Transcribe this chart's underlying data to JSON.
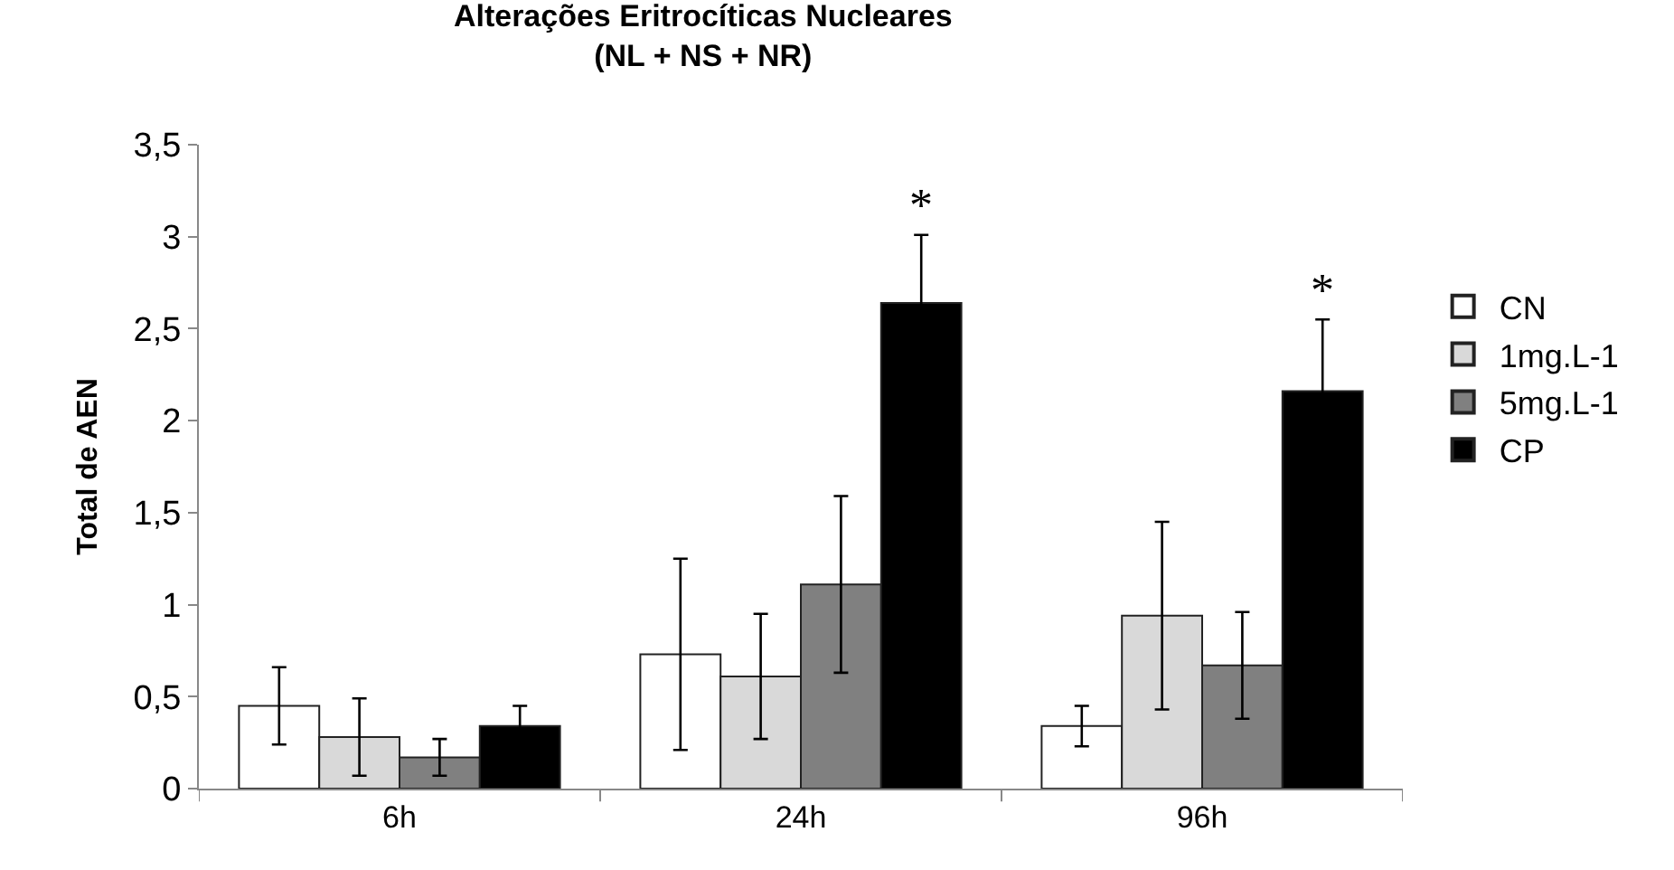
{
  "chart_data": {
    "type": "bar",
    "title": "Alterações Eritrocíticas Nucleares\n(NL + NS + NR)",
    "ylabel": "Total de AEN",
    "categories": [
      "6h",
      "24h",
      "96h"
    ],
    "series": [
      {
        "name": "CN",
        "color": "#ffffff",
        "values": [
          0.45,
          0.73,
          0.34
        ],
        "errors": [
          0.21,
          0.52,
          0.11
        ]
      },
      {
        "name": "1mg.L-1",
        "color": "#d9d9d9",
        "values": [
          0.28,
          0.61,
          0.94
        ],
        "errors": [
          0.21,
          0.34,
          0.51
        ]
      },
      {
        "name": "5mg.L-1",
        "color": "#808080",
        "values": [
          0.17,
          1.11,
          0.67
        ],
        "errors": [
          0.1,
          0.48,
          0.29
        ]
      },
      {
        "name": "CP",
        "color": "#000000",
        "values": [
          0.34,
          2.64,
          2.16
        ],
        "errors": [
          0.11,
          0.37,
          0.39
        ]
      }
    ],
    "annotations": [
      "*",
      "*"
    ],
    "ylim": [
      0,
      3.5
    ],
    "yticks": [
      0,
      {
        "value": 0.5,
        "label": "0,5"
      },
      1,
      {
        "value": 1.5,
        "label": "1,5"
      },
      2,
      {
        "value": 2.5,
        "label": "2,5"
      },
      3,
      {
        "value": 3.5,
        "label": "3,5"
      }
    ],
    "legend": "right"
  }
}
